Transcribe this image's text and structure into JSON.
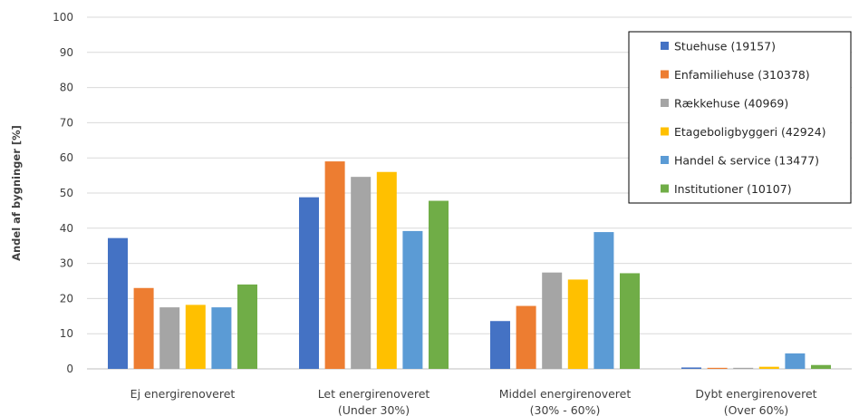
{
  "chart_data": {
    "type": "bar",
    "ylabel": "Andel af bygninger [%]",
    "xlabel": "",
    "ylim": [
      0,
      100
    ],
    "yticks": [
      0,
      10,
      20,
      30,
      40,
      50,
      60,
      70,
      80,
      90,
      100
    ],
    "grid": true,
    "legend_position": "top-right",
    "categories": [
      [
        "Ej energirenoveret"
      ],
      [
        "Let energirenoveret",
        "(Under 30%)"
      ],
      [
        "Middel energirenoveret",
        "(30% - 60%)"
      ],
      [
        "Dybt energirenoveret",
        "(Over 60%)"
      ]
    ],
    "series": [
      {
        "name": "Stuehuse (19157)",
        "color": "#4472C4",
        "values": [
          37.2,
          48.8,
          13.6,
          0.4
        ]
      },
      {
        "name": "Enfamiliehuse (310378)",
        "color": "#ED7D31",
        "values": [
          23.0,
          59.0,
          17.9,
          0.3
        ]
      },
      {
        "name": "Rækkehuse (40969)",
        "color": "#A5A5A5",
        "values": [
          17.5,
          54.6,
          27.4,
          0.3
        ]
      },
      {
        "name": "Etageboligbyggeri (42924)",
        "color": "#FFC000",
        "values": [
          18.2,
          56.0,
          25.4,
          0.6
        ]
      },
      {
        "name": "Handel & service (13477)",
        "color": "#5B9BD5",
        "values": [
          17.5,
          39.2,
          38.9,
          4.4
        ]
      },
      {
        "name": "Institutioner (10107)",
        "color": "#70AD47",
        "values": [
          24.0,
          47.8,
          27.2,
          1.1
        ]
      }
    ]
  }
}
